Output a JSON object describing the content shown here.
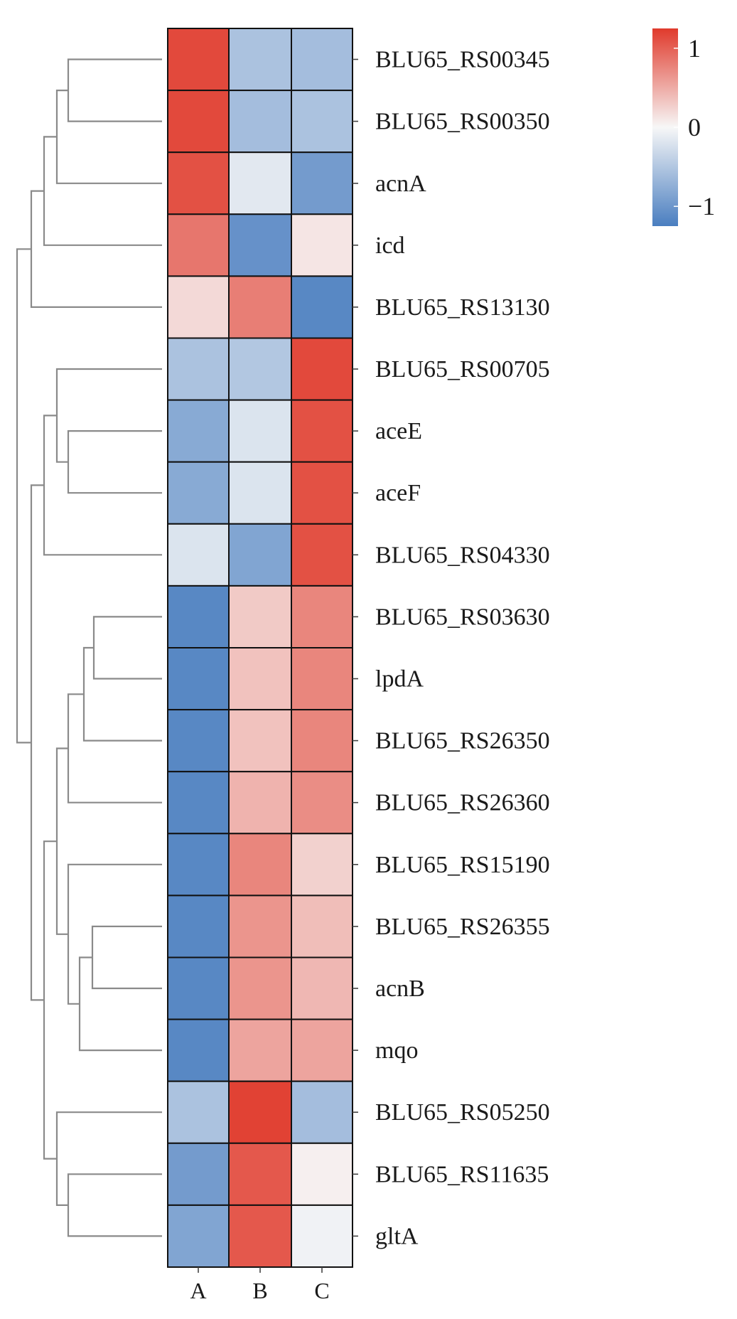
{
  "chart_data": {
    "type": "heatmap",
    "title": "",
    "xlabel": "",
    "ylabel": "",
    "columns": [
      "A",
      "B",
      "C"
    ],
    "rows": [
      "BLU65_RS00345",
      "BLU65_RS00350",
      "acnA",
      "icd",
      "BLU65_RS13130",
      "BLU65_RS00705",
      "aceE",
      "aceF",
      "BLU65_RS04330",
      "BLU65_RS03630",
      "lpdA",
      "BLU65_RS26350",
      "BLU65_RS26360",
      "BLU65_RS15190",
      "BLU65_RS26355",
      "acnB",
      "mqo",
      "BLU65_RS05250",
      "BLU65_RS11635",
      "gltA"
    ],
    "values": [
      [
        1.15,
        -0.55,
        -0.6
      ],
      [
        1.15,
        -0.6,
        -0.55
      ],
      [
        1.1,
        -0.15,
        -0.95
      ],
      [
        0.85,
        -1.05,
        0.12
      ],
      [
        0.2,
        0.8,
        -1.15
      ],
      [
        -0.55,
        -0.5,
        1.15
      ],
      [
        -0.8,
        -0.2,
        1.1
      ],
      [
        -0.8,
        -0.2,
        1.1
      ],
      [
        -0.2,
        -0.85,
        1.1
      ],
      [
        -1.15,
        0.3,
        0.75
      ],
      [
        -1.15,
        0.35,
        0.75
      ],
      [
        -1.15,
        0.35,
        0.75
      ],
      [
        -1.15,
        0.45,
        0.7
      ],
      [
        -1.15,
        0.75,
        0.25
      ],
      [
        -1.15,
        0.65,
        0.38
      ],
      [
        -1.15,
        0.65,
        0.42
      ],
      [
        -1.15,
        0.55,
        0.55
      ],
      [
        -0.55,
        1.2,
        -0.6
      ],
      [
        -0.95,
        1.05,
        0.05
      ],
      [
        -0.85,
        1.05,
        -0.05
      ]
    ],
    "color_scale": {
      "low": "#4a7ec0",
      "mid": "#f7f7f7",
      "high": "#e03a2c",
      "ticks": [
        {
          "value": 1,
          "label": "1"
        },
        {
          "value": 0,
          "label": "0"
        },
        {
          "value": -1,
          "label": "−1"
        }
      ],
      "min": -1.25,
      "max": 1.25
    },
    "legend_position": "top-right",
    "row_dendrogram": true,
    "column_dendrogram": false
  }
}
